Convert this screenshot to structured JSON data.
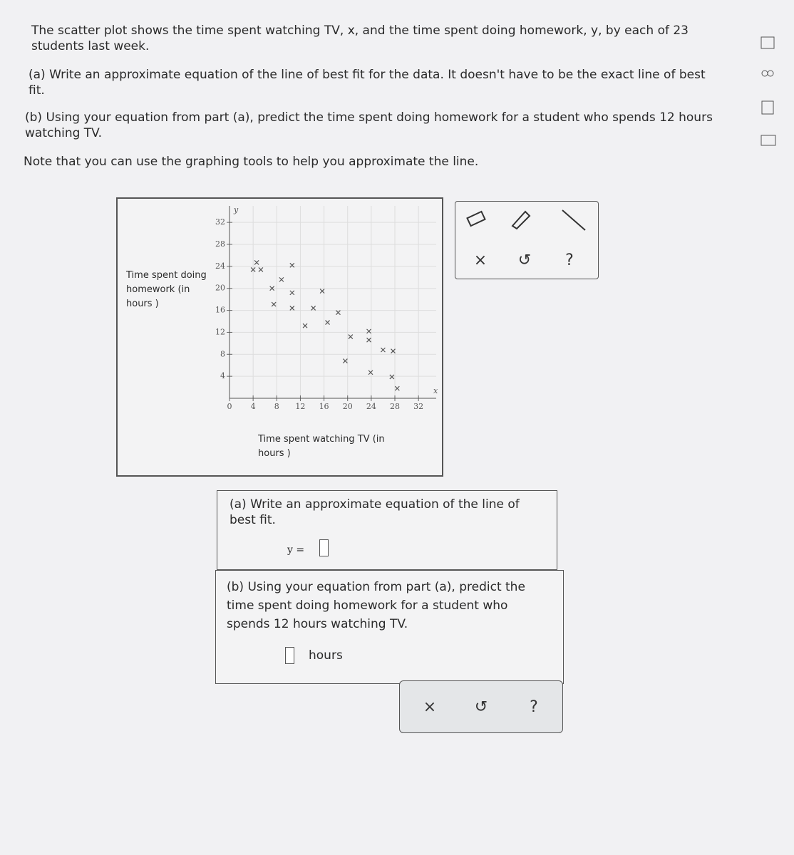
{
  "problem": {
    "intro": "The scatter plot shows the time spent watching TV, x, and the time spent doing homework, y, by each of 23 students last week.",
    "part_a": "(a) Write an approximate equation of the line of best fit for the data. It doesn't have to be the exact line of best fit.",
    "part_b": "(b) Using your equation from part (a), predict the time spent doing homework for a student who spends 12 hours watching TV.",
    "note": "Note that you can use the graphing tools to help you approximate the line."
  },
  "chart_data": {
    "type": "scatter",
    "x_label": "Time spent watching TV (in hours )",
    "y_label": "Time spent doing homework (in hours )",
    "x_axis_symbol": "x",
    "y_axis_symbol": "y",
    "x": [
      4.6,
      4,
      5.3,
      10.6,
      8.8,
      7.2,
      10.6,
      15.7,
      7.5,
      10.6,
      14.2,
      18.4,
      12.8,
      16.6,
      20.5,
      23.6,
      23.6,
      26,
      27.7,
      19.6,
      23.9,
      27.5,
      28.4
    ],
    "values": [
      24.7,
      23.4,
      23.4,
      24.2,
      21.6,
      20,
      19.2,
      19.5,
      17.1,
      16.4,
      16.4,
      15.6,
      13.2,
      13.8,
      11.2,
      12.2,
      10.6,
      8.8,
      8.6,
      6.8,
      4.7,
      3.9,
      1.8
    ],
    "color": "#555555",
    "xlim": [
      0,
      35
    ],
    "ylim": [
      0,
      35
    ],
    "xticks": [
      0,
      4,
      8,
      12,
      16,
      20,
      24,
      28,
      32
    ],
    "yticks": [
      4,
      8,
      12,
      16,
      20,
      24,
      28,
      32
    ],
    "grid": true
  },
  "graph_tools": [
    "×",
    "↺",
    "?"
  ],
  "answers": {
    "part_a_prompt": "(a) Write an approximate equation of the line of best fit.",
    "equation_lhs": "y =",
    "part_b_prompt": "(b) Using your equation from part (a), predict the time spent doing homework for a student who spends 12 hours watching TV.",
    "unit": "hours"
  },
  "answer_tools": [
    "×",
    "↺",
    "?"
  ]
}
